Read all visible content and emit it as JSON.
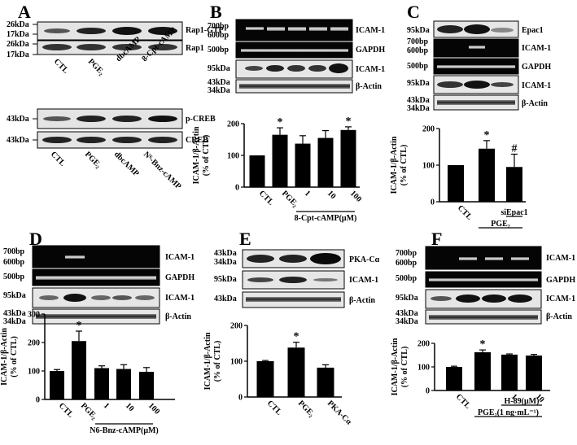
{
  "panels": {
    "A": {
      "letter": "A",
      "blot1": {
        "markers": [
          "26kDa",
          "17kDa",
          "26kDa",
          "17kDa"
        ],
        "bands": [
          "Rap1-GTP",
          "Rap1"
        ],
        "lanes": [
          "CTL",
          "PGE₂",
          "dbcAMP",
          "8-Cpt-cAMP"
        ]
      },
      "blot2": {
        "markers": [
          "43kDa",
          "43kDa"
        ],
        "bands": [
          "p-CREB",
          "CREB"
        ],
        "lanes": [
          "CTL",
          "PGE₂",
          "dbcAMP",
          "N⁶-Bnz-cAMP"
        ]
      }
    },
    "B": {
      "letter": "B",
      "markers": [
        "700bp",
        "600bp",
        "500bp",
        "95kDa",
        "43kDa",
        "34kDa"
      ],
      "bands": [
        "ICAM-1",
        "GAPDH",
        "ICAM-1",
        "β-Actin"
      ]
    },
    "C": {
      "letter": "C",
      "markers": [
        "95kDa",
        "700bp",
        "600bp",
        "500bp",
        "95kDa",
        "43kDa",
        "34kDa"
      ],
      "bands": [
        "Epac1",
        "ICAM-1",
        "GAPDH",
        "ICAM-1",
        "β-Actin"
      ]
    },
    "D": {
      "letter": "D",
      "markers": [
        "700bp",
        "600bp",
        "500bp",
        "95kDa",
        "43kDa",
        "34kDa"
      ],
      "bands": [
        "ICAM-1",
        "GAPDH",
        "ICAM-1",
        "β-Actin"
      ]
    },
    "E": {
      "letter": "E",
      "markers": [
        "43kDa",
        "34kDa",
        "95kDa",
        "43kDa"
      ],
      "bands": [
        "PKA-Cα",
        "ICAM-1",
        "β-Actin"
      ]
    },
    "F": {
      "letter": "F",
      "markers": [
        "700bp",
        "600bp",
        "500bp",
        "95kDa",
        "43kDa",
        "34kDa"
      ],
      "bands": [
        "ICAM-1",
        "GAPDH",
        "ICAM-1",
        "β-Actin"
      ]
    }
  },
  "chart_data": [
    {
      "panel": "B",
      "type": "bar",
      "ylabel": [
        "ICAM-1/β-Actin",
        "(% of CTL)"
      ],
      "ylim": [
        0,
        200
      ],
      "yticks": [
        0,
        100,
        200
      ],
      "categories": [
        "CTL",
        "PGE₂",
        "1",
        "10",
        "100"
      ],
      "values": [
        100,
        165,
        137,
        155,
        180
      ],
      "errors": [
        0,
        22,
        25,
        23,
        10
      ],
      "sig": [
        "",
        "*",
        "",
        "",
        "*"
      ],
      "bracket": {
        "label": "8-Cpt-cAMP(μM)",
        "from": 2,
        "to": 4
      }
    },
    {
      "panel": "C",
      "type": "bar",
      "ylabel": [
        "ICAM-1/β-Actin",
        "(% of CTL)"
      ],
      "ylim": [
        0,
        200
      ],
      "yticks": [
        0,
        100,
        200
      ],
      "categories": [
        "CTL",
        "",
        ""
      ],
      "values": [
        100,
        145,
        95
      ],
      "errors": [
        0,
        22,
        35
      ],
      "sig": [
        "",
        "*",
        "#"
      ],
      "bracket_labels": [
        {
          "label": "siEpac1",
          "from": 2,
          "to": 2
        },
        {
          "label": "PGE₂",
          "from": 1,
          "to": 2
        }
      ]
    },
    {
      "panel": "D",
      "type": "bar",
      "ylabel": [
        "ICAM-1/β-Actin",
        "(% of CTL)"
      ],
      "ylim": [
        0,
        300
      ],
      "yticks": [
        0,
        100,
        200,
        300
      ],
      "categories": [
        "CTL",
        "PGE₂",
        "1",
        "10",
        "100"
      ],
      "values": [
        100,
        205,
        110,
        107,
        97
      ],
      "errors": [
        5,
        35,
        8,
        15,
        15
      ],
      "sig": [
        "",
        "*",
        "",
        "",
        ""
      ],
      "bracket": {
        "label": "N6-Bnz-cAMP(μM)",
        "from": 2,
        "to": 4
      }
    },
    {
      "panel": "E",
      "type": "bar",
      "ylabel": [
        "ICAM-1/β-Actin",
        "(% of CTL)"
      ],
      "ylim": [
        0,
        200
      ],
      "yticks": [
        0,
        100,
        200
      ],
      "categories": [
        "CTL",
        "PGE₂",
        "PKA-Cα"
      ],
      "values": [
        100,
        138,
        82
      ],
      "errors": [
        2,
        15,
        8
      ],
      "sig": [
        "",
        "*",
        ""
      ]
    },
    {
      "panel": "F",
      "type": "bar",
      "ylabel": [
        "ICAM-1/β-Actin",
        "(% of CTL)"
      ],
      "ylim": [
        0,
        200
      ],
      "yticks": [
        0,
        100,
        200
      ],
      "categories": [
        "CTL",
        "",
        "1",
        "10"
      ],
      "values": [
        100,
        162,
        152,
        148
      ],
      "errors": [
        3,
        10,
        3,
        5
      ],
      "sig": [
        "",
        "*",
        "",
        ""
      ],
      "bracket_labels": [
        {
          "label": "H-89(μM)",
          "from": 2,
          "to": 3
        },
        {
          "label": "PGE₂(1 ng·mL⁻¹)",
          "from": 1,
          "to": 3
        }
      ]
    }
  ]
}
